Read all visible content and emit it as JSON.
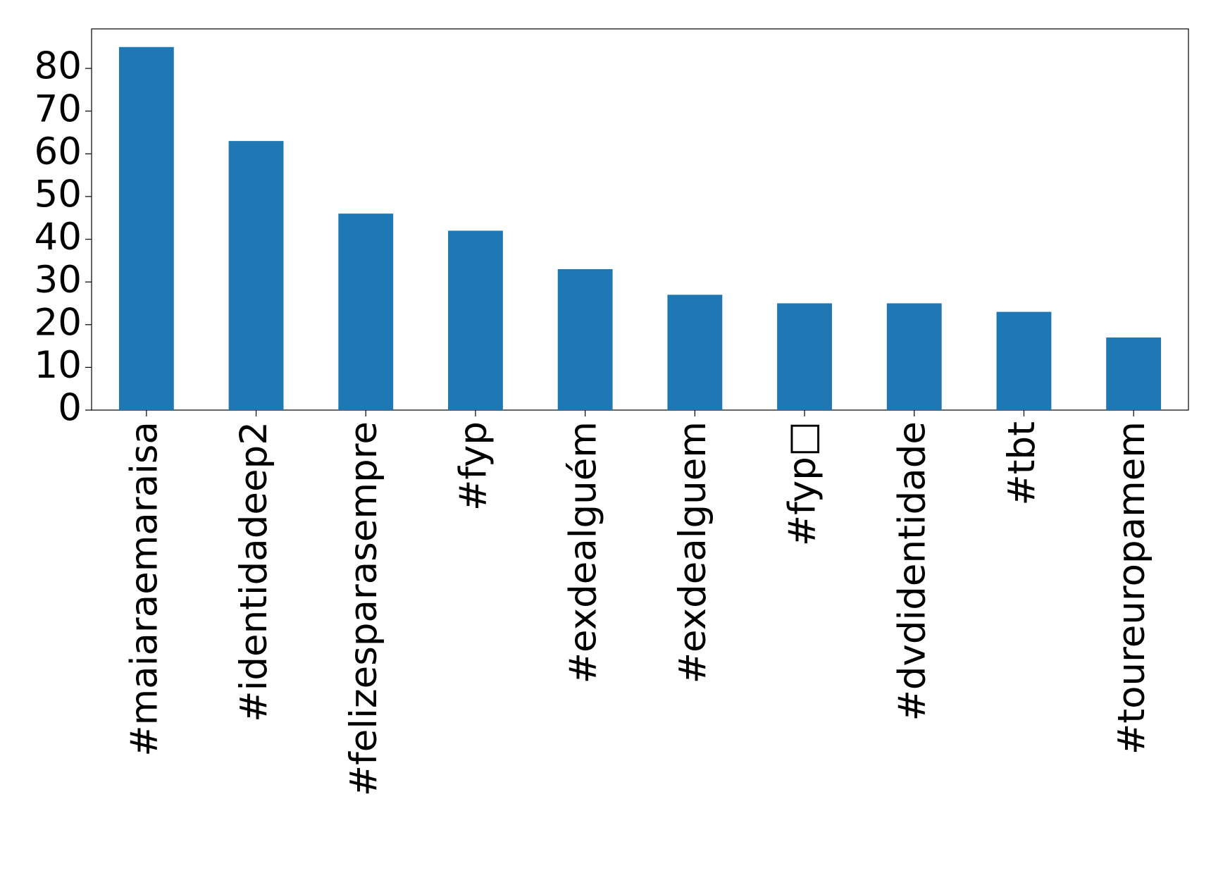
{
  "chart_data": {
    "type": "bar",
    "categories": [
      "#maiaraemaraisa",
      "#identidadeep2",
      "#felizesparasempre",
      "#fyp",
      "#exdealguém",
      "#exdealguem",
      "#fyp□",
      "#dvdidentidade",
      "#tbt",
      "#toureuropamem"
    ],
    "values": [
      85,
      63,
      46,
      42,
      33,
      27,
      25,
      25,
      23,
      17
    ],
    "color": "#1f77b4",
    "ylim": [
      0,
      89.25
    ],
    "yticks": [
      0,
      10,
      20,
      30,
      40,
      50,
      60,
      70,
      80
    ],
    "grid": false
  }
}
